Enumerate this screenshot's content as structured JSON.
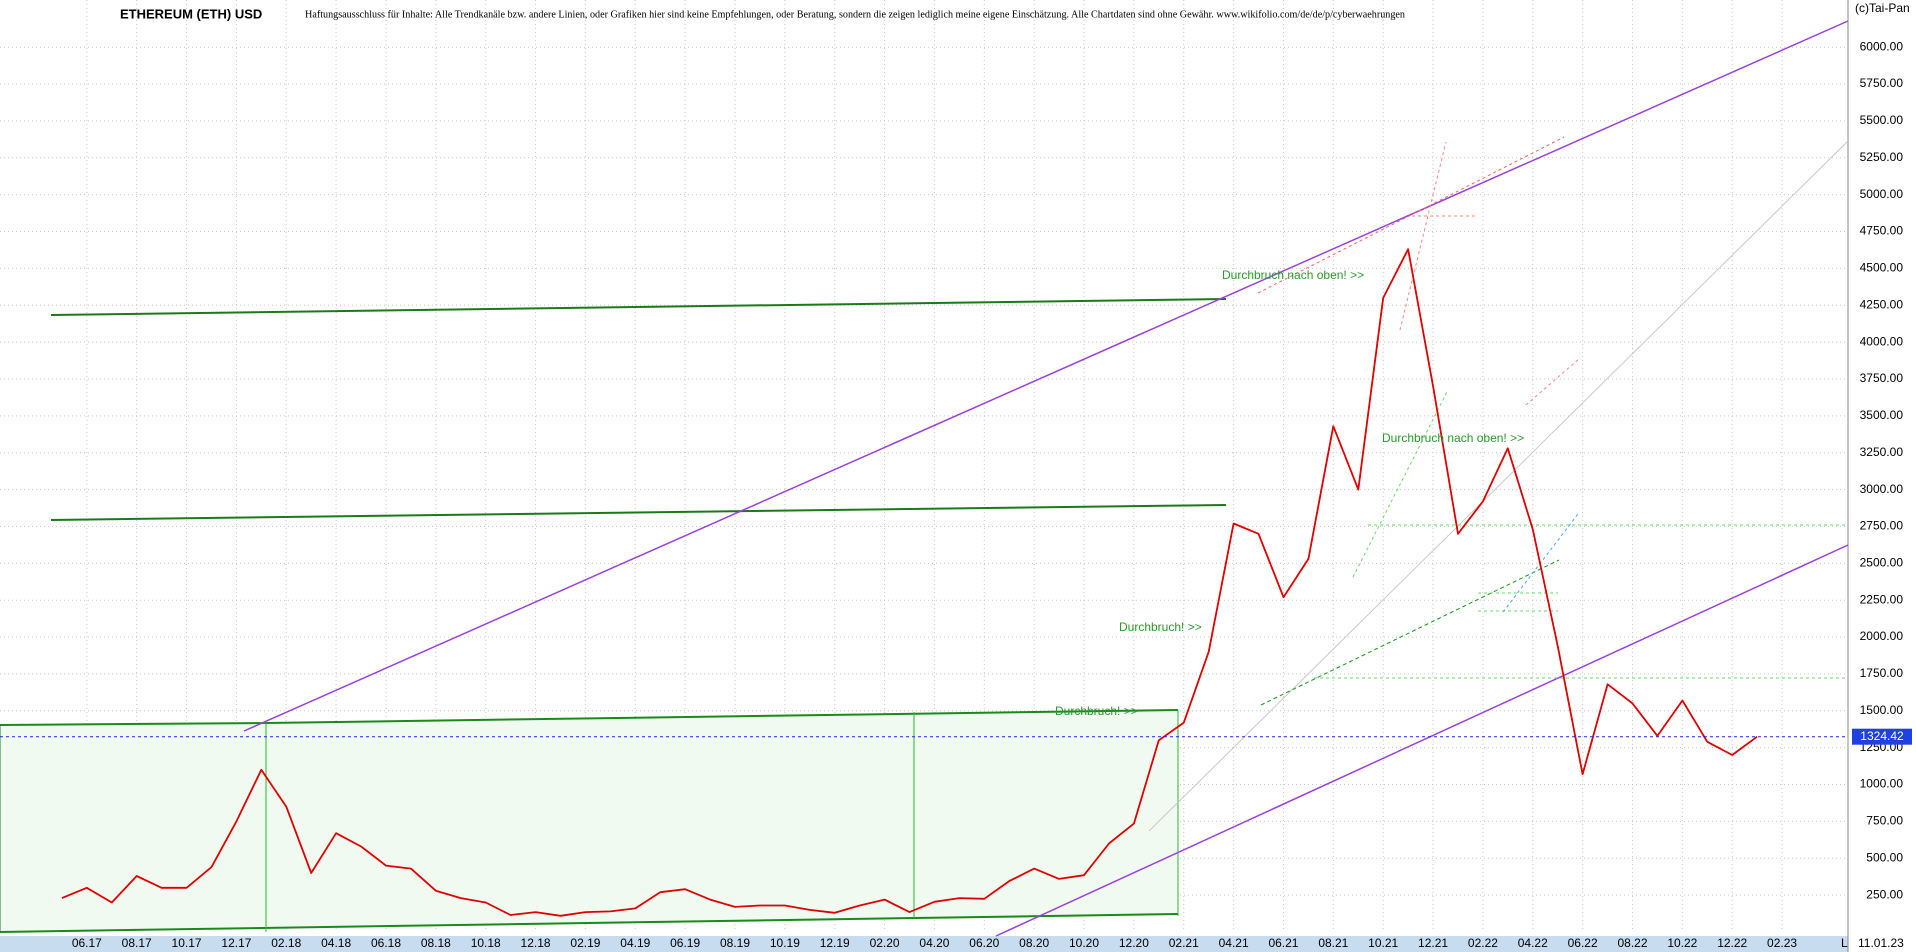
{
  "chart_data": {
    "type": "line",
    "title": "ETHEREUM (ETH) USD",
    "subtitle": "Haftungsausschluss für Inhalte: Alle Trendkanäle bzw. andere Linien, oder Grafiken hier sind keine Empfehlungen, oder Beratung, sondern die zeigen lediglich meine eigene Einschätzung. Alle Chartdaten sind ohne Gewähr.  www.wikifolio.com/de/de/p/cyberwaehrungen",
    "source": "(c)Tai-Pan",
    "date": "11.01.23",
    "scale_mark": "L",
    "annotations": [
      "Durchbruch nach oben! >>",
      "Durchbruch nach oben! >>",
      "Durchbruch! >>",
      "Durchbruch! >>"
    ],
    "categories": [
      null,
      "06.17",
      null,
      "08.17",
      null,
      "10.17",
      null,
      "12.17",
      null,
      "02.18",
      null,
      "04.18",
      null,
      "06.18",
      null,
      "08.18",
      null,
      "10.18",
      null,
      "12.18",
      null,
      "02.19",
      null,
      "04.19",
      null,
      "06.19",
      null,
      "08.19",
      null,
      "10.19",
      null,
      "12.19",
      null,
      "02.20",
      null,
      "04.20",
      null,
      "06.20",
      null,
      "08.20",
      null,
      "10.20",
      null,
      "12.20",
      null,
      "02.21",
      null,
      "04.21",
      null,
      "06.21",
      null,
      "08.21",
      null,
      "10.21",
      null,
      "12.21",
      null,
      "02.22",
      null,
      "04.22",
      null,
      "06.22",
      null,
      "08.22",
      null,
      "10.22",
      null,
      "12.22",
      null,
      "02.23"
    ],
    "series": [
      {
        "name": "ETH",
        "color": "#e00000",
        "values": [
          230,
          300,
          200,
          380,
          300,
          300,
          440,
          750,
          1100,
          850,
          400,
          670,
          580,
          450,
          430,
          280,
          230,
          200,
          115,
          135,
          110,
          135,
          140,
          160,
          270,
          290,
          220,
          170,
          180,
          180,
          150,
          130,
          180,
          220,
          135,
          205,
          230,
          225,
          345,
          430,
          360,
          385,
          600,
          735,
          1300,
          1420,
          1900,
          2770,
          2700,
          2270,
          2530,
          3430,
          3000,
          4300,
          4630,
          3700,
          2700,
          2920,
          3280,
          2730,
          1940,
          1070,
          1680,
          1550,
          1330,
          1570,
          1290,
          1200,
          1324.42,
          null
        ]
      }
    ],
    "last_price": {
      "value": 1324.42,
      "label": "1324.42"
    },
    "ylim": [
      0,
      6320
    ],
    "yticks": [
      {
        "value": 250,
        "label": "250.00"
      },
      {
        "value": 500,
        "label": "500.00"
      },
      {
        "value": 750,
        "label": "750.00"
      },
      {
        "value": 1000,
        "label": "1000.00"
      },
      {
        "value": 1250,
        "label": "1250.00"
      },
      {
        "value": 1500,
        "label": "1500.00"
      },
      {
        "value": 1750,
        "label": "1750.00"
      },
      {
        "value": 2000,
        "label": "2000.00"
      },
      {
        "value": 2250,
        "label": "2250.00"
      },
      {
        "value": 2500,
        "label": "2500.00"
      },
      {
        "value": 2750,
        "label": "2750.00"
      },
      {
        "value": 3000,
        "label": "3000.00"
      },
      {
        "value": 3250,
        "label": "3250.00"
      },
      {
        "value": 3500,
        "label": "3500.00"
      },
      {
        "value": 3750,
        "label": "3750.00"
      },
      {
        "value": 4000,
        "label": "4000.00"
      },
      {
        "value": 4250,
        "label": "4250.00"
      },
      {
        "value": 4500,
        "label": "4500.00"
      },
      {
        "value": 4750,
        "label": "4750.00"
      },
      {
        "value": 5000,
        "label": "5000.00"
      },
      {
        "value": 5250,
        "label": "5250.00"
      },
      {
        "value": 5500,
        "label": "5500.00"
      },
      {
        "value": 5750,
        "label": "5750.00"
      },
      {
        "value": 6000,
        "label": "6000.00"
      }
    ],
    "grid": true
  }
}
